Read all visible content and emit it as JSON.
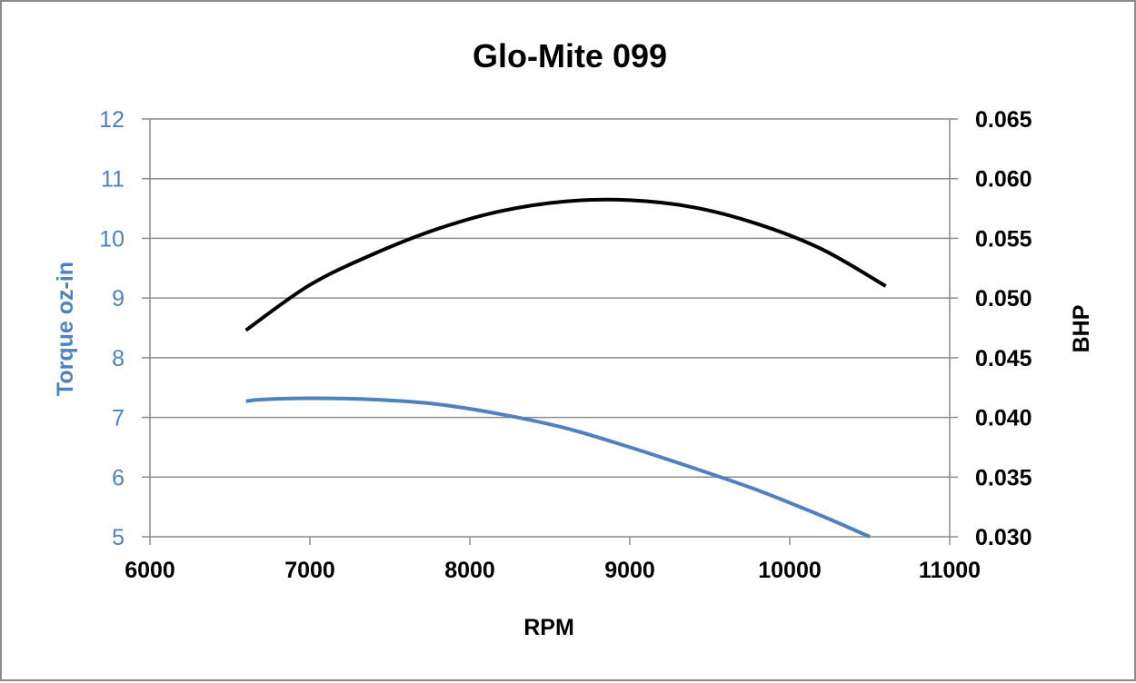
{
  "chart_data": {
    "type": "line",
    "title": "Glo-Mite 099",
    "xlabel": "RPM",
    "ylabel_left": "Torque oz-in",
    "ylabel_right": "BHP",
    "xlim": [
      6000,
      11000
    ],
    "ylim_left": [
      5,
      12
    ],
    "ylim_right": [
      0.03,
      0.065
    ],
    "x_ticks": [
      "6000",
      "7000",
      "8000",
      "9000",
      "10000",
      "11000"
    ],
    "y_left_ticks": [
      "5",
      "6",
      "7",
      "8",
      "9",
      "10",
      "11",
      "12"
    ],
    "y_right_ticks": [
      "0.030",
      "0.035",
      "0.040",
      "0.045",
      "0.050",
      "0.055",
      "0.060",
      "0.065"
    ],
    "grid": true,
    "legend": "none",
    "series": [
      {
        "axis": "left",
        "color": "#4f81bd",
        "points": [
          [
            6600,
            7.27
          ],
          [
            6700,
            7.3
          ],
          [
            7000,
            7.32
          ],
          [
            7400,
            7.3
          ],
          [
            7800,
            7.22
          ],
          [
            8200,
            7.05
          ],
          [
            8600,
            6.82
          ],
          [
            9000,
            6.5
          ],
          [
            9400,
            6.15
          ],
          [
            9800,
            5.78
          ],
          [
            10200,
            5.35
          ],
          [
            10500,
            5.0
          ]
        ]
      },
      {
        "axis": "right",
        "color": "#000000",
        "points": [
          [
            6600,
            0.0473
          ],
          [
            7000,
            0.0511
          ],
          [
            7400,
            0.0537
          ],
          [
            7800,
            0.0558
          ],
          [
            8200,
            0.0573
          ],
          [
            8600,
            0.0581
          ],
          [
            9000,
            0.0582
          ],
          [
            9400,
            0.0576
          ],
          [
            9800,
            0.0562
          ],
          [
            10200,
            0.0541
          ],
          [
            10600,
            0.051
          ]
        ]
      }
    ]
  }
}
